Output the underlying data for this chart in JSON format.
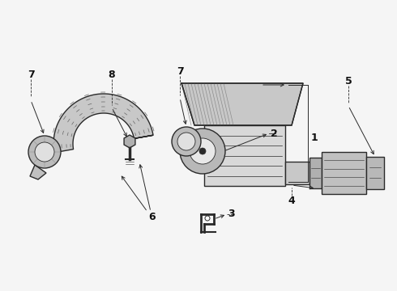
{
  "background": "#f5f5f5",
  "line_color": "#2a2a2a",
  "label_color": "#111111",
  "lw_main": 1.0,
  "lw_thin": 0.5,
  "lw_label": 0.6,
  "fig_w": 4.9,
  "fig_h": 3.6,
  "dpi": 100
}
